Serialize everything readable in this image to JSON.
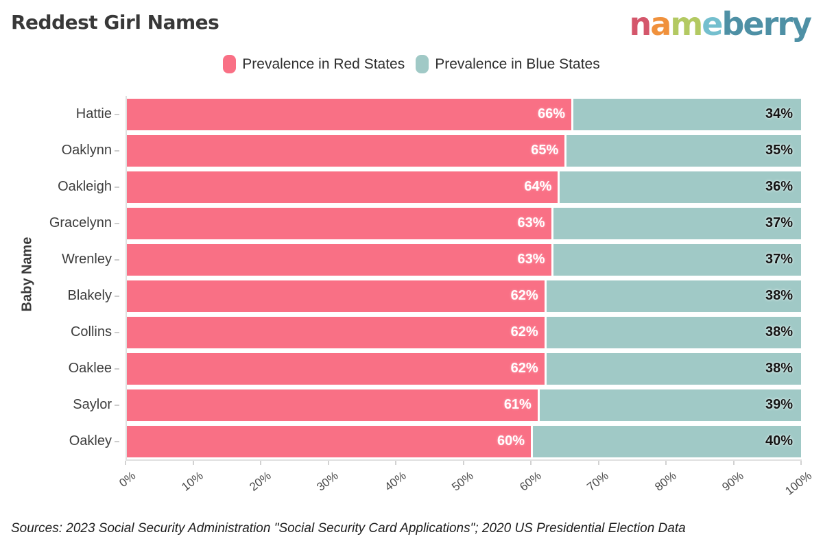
{
  "title": "Reddest Girl Names",
  "logo": {
    "word": "nameberry",
    "letters": [
      {
        "char": "n",
        "color": "#d4566b"
      },
      {
        "char": "a",
        "color": "#f0913c"
      },
      {
        "char": "m",
        "color": "#b3c962"
      },
      {
        "char": "e",
        "color": "#74bfce"
      },
      {
        "char": "b",
        "color": "#4e90a5"
      },
      {
        "char": "e",
        "color": "#4e90a5"
      },
      {
        "char": "r",
        "color": "#4e90a5"
      },
      {
        "char": "r",
        "color": "#4e90a5"
      },
      {
        "char": "y",
        "color": "#4e90a5"
      }
    ]
  },
  "legend": [
    {
      "label": "Prevalence in Red States",
      "color": "#f97085"
    },
    {
      "label": "Prevalence in Blue States",
      "color": "#a0c9c6"
    }
  ],
  "chart_data": {
    "type": "bar",
    "orientation": "horizontal",
    "stacked": true,
    "title": "Reddest Girl Names",
    "xlabel": "",
    "ylabel": "Baby Name",
    "xlim": [
      0,
      100
    ],
    "x_ticks": [
      "0%",
      "10%",
      "20%",
      "30%",
      "40%",
      "50%",
      "60%",
      "70%",
      "80%",
      "90%",
      "100%"
    ],
    "grid": false,
    "legend_position": "top-center",
    "categories": [
      "Hattie",
      "Oaklynn",
      "Oakleigh",
      "Gracelynn",
      "Wrenley",
      "Blakely",
      "Collins",
      "Oaklee",
      "Saylor",
      "Oakley"
    ],
    "series": [
      {
        "name": "Prevalence in Red States",
        "color": "#f97085",
        "values": [
          66,
          65,
          64,
          63,
          63,
          62,
          62,
          62,
          61,
          60
        ]
      },
      {
        "name": "Prevalence in Blue States",
        "color": "#a0c9c6",
        "values": [
          34,
          35,
          36,
          37,
          37,
          38,
          38,
          38,
          39,
          40
        ]
      }
    ],
    "bar_labels_format": "percent"
  },
  "colors": {
    "red_bar": "#f97085",
    "blue_bar": "#a0c9c6",
    "axis_line": "#e0e0e0",
    "tick_mark": "#d2d2d2",
    "title_text": "#383838",
    "body_text": "#3d3d3d"
  },
  "source_note": "Sources: 2023 Social Security Administration \"Social Security Card Applications\"; 2020 US Presidential Election Data"
}
